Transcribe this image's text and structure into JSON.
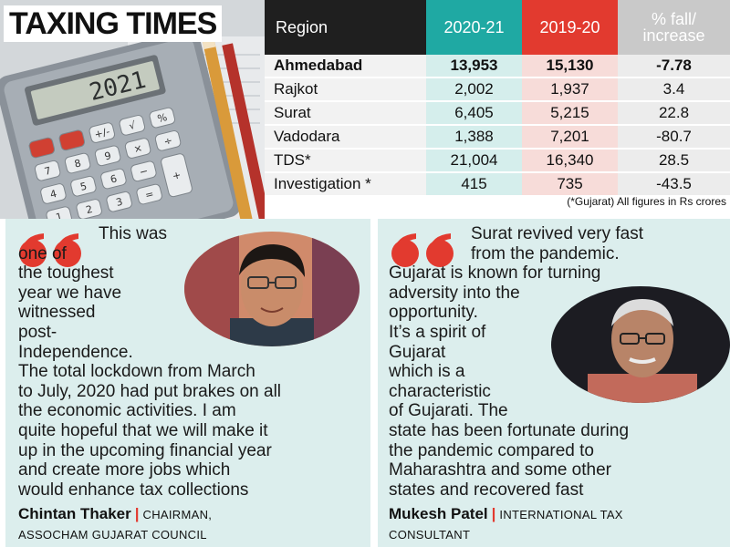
{
  "headline": "TAXING TIMES",
  "calculator_display": "2021",
  "table": {
    "headers": {
      "region": "Region",
      "year1": "2020-21",
      "year2": "2019-20",
      "change_line1": "% fall/",
      "change_line2": "increase"
    },
    "rows": [
      {
        "region": "Ahmedabad",
        "v2021": "13,953",
        "v2020": "15,130",
        "change": "-7.78"
      },
      {
        "region": "Rajkot",
        "v2021": "2,002",
        "v2020": "1,937",
        "change": "3.4"
      },
      {
        "region": "Surat",
        "v2021": "6,405",
        "v2020": "5,215",
        "change": "22.8"
      },
      {
        "region": "Vadodara",
        "v2021": "1,388",
        "v2020": "7,201",
        "change": "-80.7"
      },
      {
        "region": "TDS*",
        "v2021": "21,004",
        "v2020": "16,340",
        "change": "28.5"
      },
      {
        "region": "Investigation *",
        "v2021": "415",
        "v2020": "735",
        "change": "-43.5"
      }
    ],
    "footnote": "(*Gujarat) All figures in Rs crores"
  },
  "quote_left": {
    "lines": [
      "This was",
      "one of",
      "the toughest",
      "year we have",
      "witnessed",
      "post-",
      "Independence.",
      "The total lockdown from March",
      "to July, 2020 had put brakes on all",
      "the economic activities. I am",
      "quite hopeful that we will make it",
      "up in the upcoming financial year",
      "and create more jobs which",
      "would enhance tax collections"
    ],
    "name": "Chintan Thaker",
    "title_line1": "CHAIRMAN,",
    "title_line2": "ASSOCHAM GUJARAT COUNCIL"
  },
  "quote_right": {
    "lines": [
      "Surat revived very fast",
      "from the pandemic.",
      "Gujarat is known for turning",
      "adversity into the",
      "opportunity.",
      "It’s a spirit of",
      "Gujarat",
      "which is a",
      "characteristic",
      "of Gujarati. The",
      "state has been fortunate during",
      "the pandemic compared to",
      "Maharashtra and some other",
      "states and recovered fast"
    ],
    "name": "Mukesh Patel",
    "title_line1": "INTERNATIONAL TAX",
    "title_line2": "CONSULTANT"
  },
  "colors": {
    "teal": "#1fa9a3",
    "red": "#e23a2f",
    "panel_bg": "#dceeed",
    "header_dark": "#1f1f1f"
  }
}
